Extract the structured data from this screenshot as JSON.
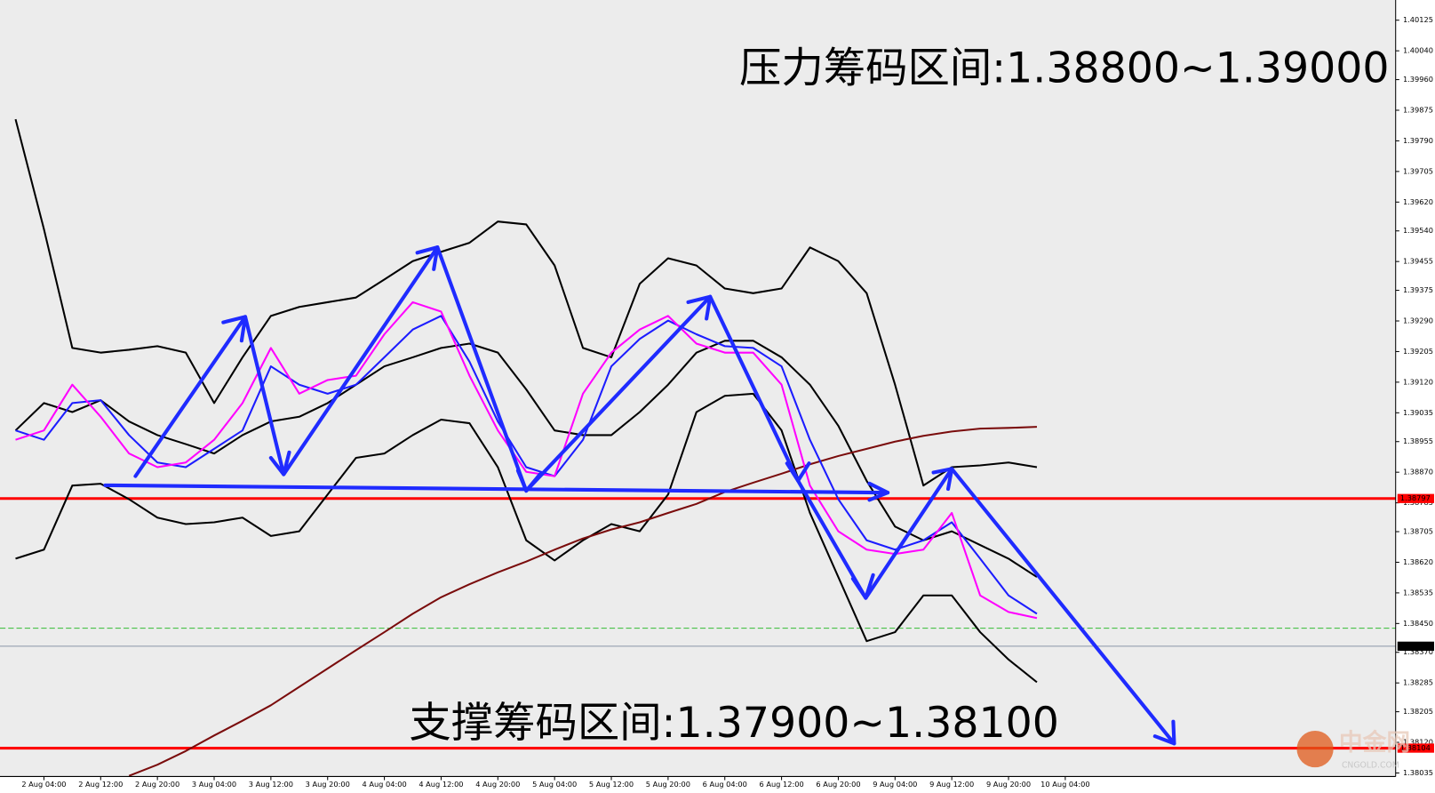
{
  "chart_data": {
    "type": "line",
    "annotations": [
      "压力筹码区间:1.38800~1.39000",
      "支撑筹码区间:1.37900~1.38100"
    ],
    "watermark": "中金网",
    "watermark_sub": "CNGOLD.COM",
    "categories": [
      null,
      "2 Aug 04:00",
      null,
      "2 Aug 12:00",
      null,
      "2 Aug 20:00",
      null,
      "3 Aug 04:00",
      null,
      "3 Aug 12:00",
      null,
      "3 Aug 20:00",
      null,
      "4 Aug 04:00",
      null,
      "4 Aug 12:00",
      null,
      "4 Aug 20:00",
      null,
      "5 Aug 04:00",
      null,
      "5 Aug 12:00",
      null,
      "5 Aug 20:00",
      null,
      "6 Aug 04:00",
      null,
      "6 Aug 12:00",
      null,
      "6 Aug 20:00",
      null,
      "9 Aug 04:00",
      null,
      "9 Aug 12:00",
      null,
      "9 Aug 20:00",
      null,
      "10 Aug 04:00"
    ],
    "ylim": [
      1.37982,
      1.40181
    ],
    "yticks": [
      1.40125,
      {
        "value": 1.4004,
        "label": "1.40040"
      },
      {
        "value": 1.3996,
        "label": "1.39960"
      },
      1.39875,
      {
        "value": 1.3979,
        "label": "1.39790"
      },
      1.39705,
      {
        "value": 1.3962,
        "label": "1.39620"
      },
      {
        "value": 1.3954,
        "label": "1.39540"
      },
      1.39455,
      1.39375,
      {
        "value": 1.3929,
        "label": "1.39290"
      },
      1.39205,
      {
        "value": 1.3912,
        "label": "1.39120"
      },
      1.39035,
      1.38955,
      {
        "value": 1.3887,
        "label": "1.38870"
      },
      1.38785,
      1.38705,
      {
        "value": 1.3862,
        "label": "1.38620"
      },
      1.38535,
      {
        "value": 1.3845,
        "label": "1.38450"
      },
      {
        "value": 1.3837,
        "label": "1.38370"
      },
      1.38285,
      1.38205,
      {
        "value": 1.3812,
        "label": "1.38120"
      },
      1.38035
    ],
    "levels": [
      {
        "value": 1.38797,
        "color": "#ff0000",
        "style": "solid",
        "box": true
      },
      {
        "value": 1.38104,
        "color": "#ff0000",
        "style": "solid",
        "box": true
      },
      {
        "value": 1.38437,
        "color": "#33bb33",
        "style": "dashed",
        "box": false
      },
      {
        "value": 1.38387,
        "color": "#8a96a8",
        "style": "solid",
        "box": true,
        "box_color": "#000000"
      }
    ],
    "series": [
      {
        "color": "#000000",
        "values": [
          1.3985,
          1.39545,
          1.39215,
          1.39202,
          1.3921,
          1.3922,
          1.39202,
          1.39062,
          1.39189,
          1.39304,
          1.39329,
          1.39342,
          1.39355,
          1.39405,
          1.39456,
          1.39482,
          1.39507,
          1.39566,
          1.39558,
          1.39444,
          1.39215,
          1.39189,
          1.39393,
          1.39464,
          1.39444,
          1.3938,
          1.39367,
          1.3938,
          1.39494,
          1.39456,
          1.39367,
          1.39113,
          1.38833,
          1.38884,
          1.38889,
          1.38897,
          1.38884,
          null
        ]
      },
      {
        "color": "#000000",
        "values": [
          1.3863,
          1.38655,
          1.38833,
          1.38838,
          1.38795,
          1.38744,
          1.38726,
          1.38731,
          1.38744,
          1.38693,
          1.38706,
          1.38808,
          1.3891,
          1.38922,
          1.38973,
          1.39016,
          1.39006,
          1.38884,
          1.38681,
          1.38625,
          1.38681,
          1.38726,
          1.38706,
          1.38808,
          1.39037,
          1.39082,
          1.39088,
          1.38986,
          1.38757,
          1.38579,
          1.38401,
          1.38426,
          1.38528,
          1.38528,
          1.38426,
          1.3835,
          1.38287,
          null
        ]
      },
      {
        "color": "#000000",
        "values": [
          1.38986,
          1.39062,
          1.39037,
          1.3907,
          1.39011,
          1.38973,
          1.38948,
          1.38922,
          1.38973,
          1.39011,
          1.39024,
          1.39062,
          1.39113,
          1.39164,
          1.39189,
          1.39215,
          1.39227,
          1.39202,
          1.391,
          1.38986,
          1.38973,
          1.38973,
          1.39037,
          1.39113,
          1.39202,
          1.39235,
          1.39235,
          1.39189,
          1.39113,
          1.38999,
          1.38846,
          1.38719,
          1.38681,
          1.38706,
          1.38668,
          1.3863,
          1.38579,
          null
        ]
      },
      {
        "color": "#7a0c0c",
        "values": [
          null,
          null,
          null,
          null,
          1.38027,
          1.38058,
          1.38096,
          1.38139,
          1.3818,
          1.38223,
          1.38274,
          1.38325,
          1.38376,
          1.38426,
          1.38477,
          1.38523,
          1.38559,
          1.38592,
          1.38622,
          1.38655,
          1.38686,
          1.38711,
          1.38731,
          1.38757,
          1.38782,
          1.38815,
          1.38841,
          1.38866,
          1.38892,
          1.38915,
          1.38935,
          1.38955,
          1.38971,
          1.38983,
          1.38991,
          1.38993,
          1.38996,
          null
        ]
      },
      {
        "color": "#1c1cff",
        "values": [
          1.38986,
          1.3896,
          1.39062,
          1.3907,
          1.38973,
          1.38897,
          1.38884,
          1.38935,
          1.38986,
          1.39164,
          1.39113,
          1.39088,
          1.39113,
          1.39189,
          1.39266,
          1.39304,
          1.39177,
          1.39011,
          1.38884,
          1.38859,
          1.3896,
          1.39164,
          1.3924,
          1.39291,
          1.39253,
          1.3922,
          1.39215,
          1.39164,
          1.3896,
          1.38795,
          1.38681,
          1.38655,
          1.38681,
          1.38731,
          1.3863,
          1.38528,
          1.38477,
          null
        ]
      },
      {
        "color": "#ff00ff",
        "values": [
          1.3896,
          1.38986,
          1.39113,
          1.39024,
          1.38922,
          1.38884,
          1.38897,
          1.3896,
          1.39062,
          1.39215,
          1.39088,
          1.39126,
          1.39138,
          1.39253,
          1.39342,
          1.39316,
          1.39138,
          1.38986,
          1.38871,
          1.38859,
          1.39088,
          1.39202,
          1.39266,
          1.39304,
          1.39227,
          1.39202,
          1.39202,
          1.39113,
          1.38833,
          1.38706,
          1.38655,
          1.38643,
          1.38655,
          1.38757,
          1.38528,
          1.38482,
          1.38465,
          null
        ]
      }
    ]
  }
}
